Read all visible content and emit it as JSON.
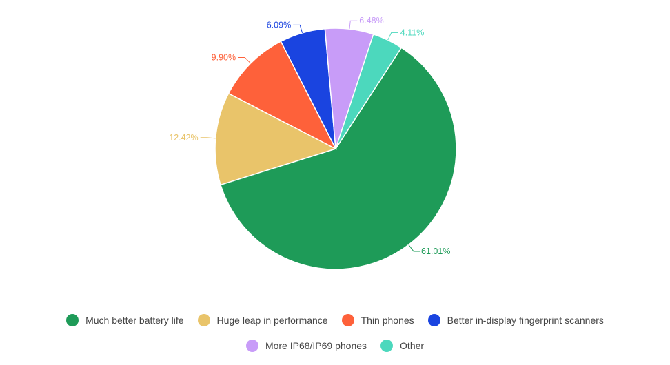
{
  "chart_data": {
    "type": "pie",
    "start_angle_deg": 33,
    "direction": "clockwise",
    "slices": [
      {
        "label": "Much better battery life",
        "value": 61.01,
        "value_label": "61.01%",
        "color": "#1e9b58"
      },
      {
        "label": "Huge leap in performance",
        "value": 12.42,
        "value_label": "12.42%",
        "color": "#e9c46a"
      },
      {
        "label": "Thin phones",
        "value": 9.9,
        "value_label": "9.90%",
        "color": "#fe613a"
      },
      {
        "label": "Better in-display fingerprint scanners",
        "value": 6.09,
        "value_label": "6.09%",
        "color": "#1a44e0"
      },
      {
        "label": "More IP68/IP69 phones",
        "value": 6.48,
        "value_label": "6.48%",
        "color": "#c89cf8"
      },
      {
        "label": "Other",
        "value": 4.11,
        "value_label": "4.11%",
        "color": "#4cd8bd"
      }
    ],
    "legend_position": "bottom"
  }
}
